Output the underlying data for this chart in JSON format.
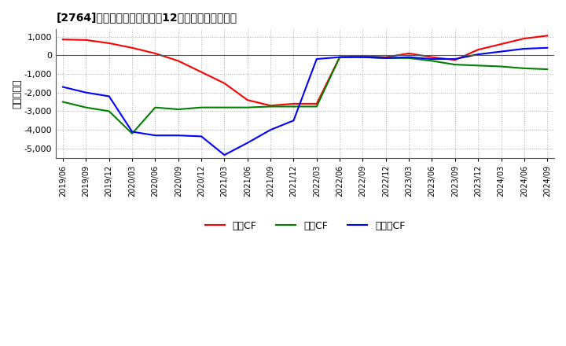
{
  "title": "[2764]　キャッシュフローの12か月移動合計の推移",
  "ylabel": "（百万円）",
  "background_color": "#ffffff",
  "grid_color": "#aaaaaa",
  "ylim": [
    -5500,
    1400
  ],
  "yticks": [
    -5000,
    -4000,
    -3000,
    -2000,
    -1000,
    0,
    1000
  ],
  "x_labels": [
    "2019/06",
    "2019/09",
    "2019/12",
    "2020/03",
    "2020/06",
    "2020/09",
    "2020/12",
    "2021/03",
    "2021/06",
    "2021/09",
    "2021/12",
    "2022/03",
    "2022/06",
    "2022/09",
    "2022/12",
    "2023/03",
    "2023/06",
    "2023/09",
    "2023/12",
    "2024/03",
    "2024/06",
    "2024/09"
  ],
  "operating_cf": [
    850,
    820,
    650,
    400,
    100,
    -300,
    -900,
    -1500,
    -2400,
    -2700,
    -2600,
    -2600,
    -100,
    -50,
    -100,
    100,
    -100,
    -250,
    300,
    600,
    900,
    1050
  ],
  "investing_cf": [
    -2500,
    -2800,
    -3000,
    -4200,
    -2800,
    -2900,
    -2800,
    -2800,
    -2800,
    -2750,
    -2750,
    -2750,
    -100,
    -100,
    -150,
    -150,
    -300,
    -500,
    -550,
    -600,
    -700,
    -750
  ],
  "free_cf": [
    -1700,
    -2000,
    -2200,
    -4100,
    -4300,
    -4300,
    -4350,
    -5350,
    -4700,
    -4000,
    -3500,
    -200,
    -100,
    -100,
    -150,
    -100,
    -200,
    -200,
    50,
    200,
    350,
    400
  ],
  "line_colors": {
    "operating": "#ff0000",
    "investing": "#008000",
    "free": "#0000ff"
  },
  "legend_labels": [
    "営業CF",
    "投資CF",
    "フリーCF"
  ]
}
